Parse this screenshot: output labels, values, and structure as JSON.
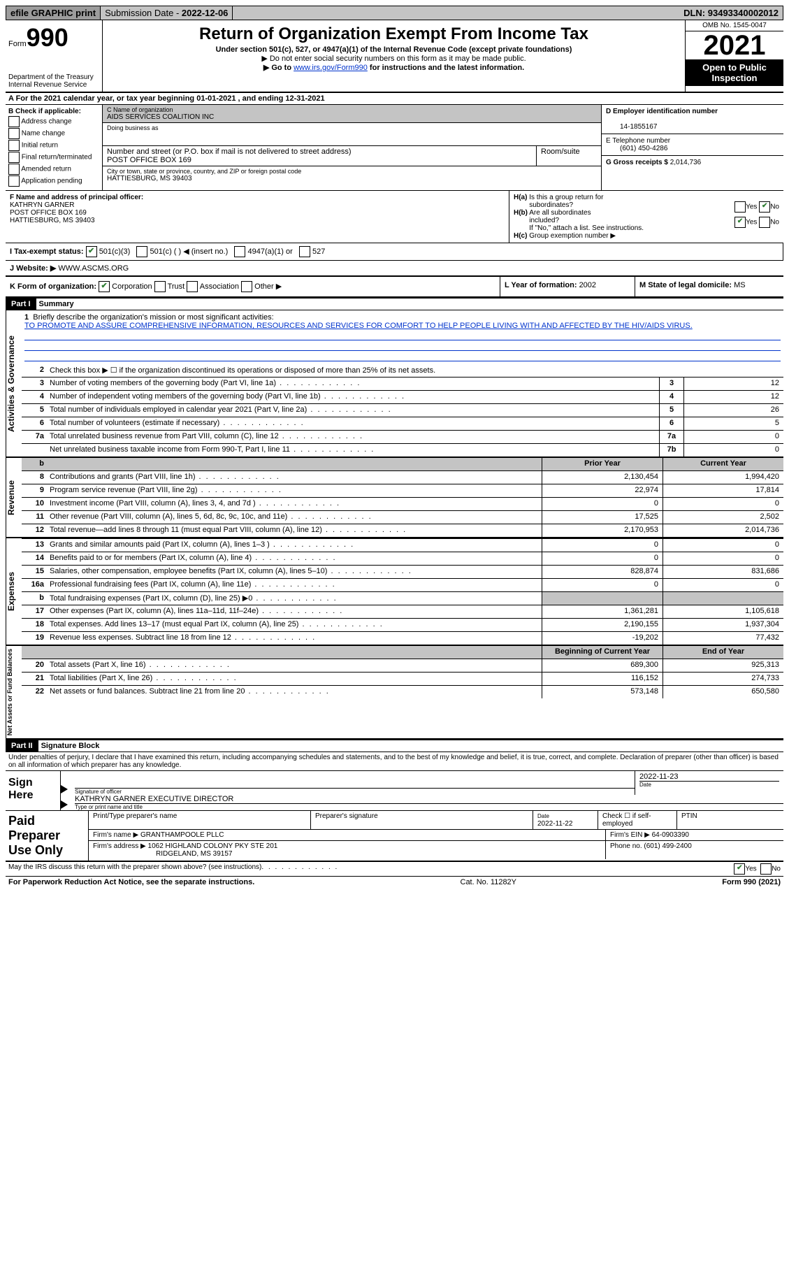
{
  "topbar": {
    "efile": "efile GRAPHIC print",
    "submission_label": "Submission Date - ",
    "submission_date": "2022-12-06",
    "dln_label": "DLN: ",
    "dln": "93493340002012"
  },
  "header": {
    "form_word": "Form",
    "form_number": "990",
    "dept": "Department of the Treasury\nInternal Revenue Service",
    "title": "Return of Organization Exempt From Income Tax",
    "subtitle": "Under section 501(c), 527, or 4947(a)(1) of the Internal Revenue Code (except private foundations)",
    "note1": "▶ Do not enter social security numbers on this form as it may be made public.",
    "note2_pre": "▶ Go to ",
    "note2_link": "www.irs.gov/Form990",
    "note2_post": " for instructions and the latest information.",
    "omb": "OMB No. 1545-0047",
    "year": "2021",
    "open": "Open to Public Inspection"
  },
  "row_a": {
    "text_pre": "A For the 2021 calendar year, or tax year beginning ",
    "begin": "01-01-2021",
    "mid": " , and ending ",
    "end": "12-31-2021"
  },
  "col_b": {
    "label": "B Check if applicable:",
    "opts": [
      "Address change",
      "Name change",
      "Initial return",
      "Final return/terminated",
      "Amended return",
      "Application pending"
    ]
  },
  "col_c": {
    "name_label": "C Name of organization",
    "name": "AIDS SERVICES COALITION INC",
    "dba_label": "Doing business as",
    "dba": "",
    "addr_label": "Number and street (or P.O. box if mail is not delivered to street address)",
    "addr": "POST OFFICE BOX 169",
    "room_label": "Room/suite",
    "room": "",
    "city_label": "City or town, state or province, country, and ZIP or foreign postal code",
    "city": "HATTIESBURG, MS  39403"
  },
  "col_d": {
    "ein_label": "D Employer identification number",
    "ein": "14-1855167",
    "phone_label": "E Telephone number",
    "phone": "(601) 450-4286",
    "gross_label": "G Gross receipts $ ",
    "gross": "2,014,736"
  },
  "officer": {
    "label": "F Name and address of principal officer:",
    "name": "KATHRYN GARNER",
    "addr1": "POST OFFICE BOX 169",
    "addr2": "HATTIESBURG, MS  39403"
  },
  "h": {
    "ha": "H(a)  Is this a group return for subordinates?",
    "hb": "H(b)  Are all subordinates included?",
    "hb_note": "If \"No,\" attach a list. See instructions.",
    "hc": "H(c)  Group exemption number ▶",
    "yes": "Yes",
    "no": "No"
  },
  "row_i": {
    "label": "I  Tax-exempt status:",
    "o1": "501(c)(3)",
    "o2": "501(c) (  ) ◀ (insert no.)",
    "o3": "4947(a)(1) or",
    "o4": "527"
  },
  "row_j": {
    "label": "J  Website: ▶ ",
    "val": "WWW.ASCMS.ORG"
  },
  "row_k": {
    "label": "K Form of organization:",
    "o1": "Corporation",
    "o2": "Trust",
    "o3": "Association",
    "o4": "Other ▶",
    "l_label": "L Year of formation: ",
    "l_val": "2002",
    "m_label": "M State of legal domicile: ",
    "m_val": "MS"
  },
  "part1": {
    "label": "Part I",
    "title": "Summary"
  },
  "summary": {
    "q1": "Briefly describe the organization's mission or most significant activities:",
    "mission": "TO PROMOTE AND ASSURE COMPREHENSIVE INFORMATION, RESOURCES AND SERVICES FOR COMFORT TO HELP PEOPLE LIVING WITH AND AFFECTED BY THE HIV/AIDS VIRUS.",
    "q2": "Check this box ▶ ☐ if the organization discontinued its operations or disposed of more than 25% of its net assets.",
    "rows_ag": [
      {
        "n": "3",
        "d": "Number of voting members of the governing body (Part VI, line 1a)",
        "box": "3",
        "v": "12"
      },
      {
        "n": "4",
        "d": "Number of independent voting members of the governing body (Part VI, line 1b)",
        "box": "4",
        "v": "12"
      },
      {
        "n": "5",
        "d": "Total number of individuals employed in calendar year 2021 (Part V, line 2a)",
        "box": "5",
        "v": "26"
      },
      {
        "n": "6",
        "d": "Total number of volunteers (estimate if necessary)",
        "box": "6",
        "v": "5"
      },
      {
        "n": "7a",
        "d": "Total unrelated business revenue from Part VIII, column (C), line 12",
        "box": "7a",
        "v": "0"
      },
      {
        "n": "",
        "d": "Net unrelated business taxable income from Form 990-T, Part I, line 11",
        "box": "7b",
        "v": "0"
      }
    ],
    "header_prior": "Prior Year",
    "header_current": "Current Year",
    "rows_rev": [
      {
        "n": "8",
        "d": "Contributions and grants (Part VIII, line 1h)",
        "p": "2,130,454",
        "c": "1,994,420"
      },
      {
        "n": "9",
        "d": "Program service revenue (Part VIII, line 2g)",
        "p": "22,974",
        "c": "17,814"
      },
      {
        "n": "10",
        "d": "Investment income (Part VIII, column (A), lines 3, 4, and 7d )",
        "p": "0",
        "c": "0"
      },
      {
        "n": "11",
        "d": "Other revenue (Part VIII, column (A), lines 5, 6d, 8c, 9c, 10c, and 11e)",
        "p": "17,525",
        "c": "2,502"
      },
      {
        "n": "12",
        "d": "Total revenue—add lines 8 through 11 (must equal Part VIII, column (A), line 12)",
        "p": "2,170,953",
        "c": "2,014,736"
      }
    ],
    "rows_exp": [
      {
        "n": "13",
        "d": "Grants and similar amounts paid (Part IX, column (A), lines 1–3 )",
        "p": "0",
        "c": "0"
      },
      {
        "n": "14",
        "d": "Benefits paid to or for members (Part IX, column (A), line 4)",
        "p": "0",
        "c": "0"
      },
      {
        "n": "15",
        "d": "Salaries, other compensation, employee benefits (Part IX, column (A), lines 5–10)",
        "p": "828,874",
        "c": "831,686"
      },
      {
        "n": "16a",
        "d": "Professional fundraising fees (Part IX, column (A), line 11e)",
        "p": "0",
        "c": "0"
      },
      {
        "n": "b",
        "d": "Total fundraising expenses (Part IX, column (D), line 25) ▶0",
        "p": "GREY",
        "c": "GREY"
      },
      {
        "n": "17",
        "d": "Other expenses (Part IX, column (A), lines 11a–11d, 11f–24e)",
        "p": "1,361,281",
        "c": "1,105,618"
      },
      {
        "n": "18",
        "d": "Total expenses. Add lines 13–17 (must equal Part IX, column (A), line 25)",
        "p": "2,190,155",
        "c": "1,937,304"
      },
      {
        "n": "19",
        "d": "Revenue less expenses. Subtract line 18 from line 12",
        "p": "-19,202",
        "c": "77,432"
      }
    ],
    "header_begin": "Beginning of Current Year",
    "header_end": "End of Year",
    "rows_net": [
      {
        "n": "20",
        "d": "Total assets (Part X, line 16)",
        "p": "689,300",
        "c": "925,313"
      },
      {
        "n": "21",
        "d": "Total liabilities (Part X, line 26)",
        "p": "116,152",
        "c": "274,733"
      },
      {
        "n": "22",
        "d": "Net assets or fund balances. Subtract line 21 from line 20",
        "p": "573,148",
        "c": "650,580"
      }
    ],
    "side_ag": "Activities & Governance",
    "side_rev": "Revenue",
    "side_exp": "Expenses",
    "side_net": "Net Assets or Fund Balances"
  },
  "part2": {
    "label": "Part II",
    "title": "Signature Block",
    "penalty": "Under penalties of perjury, I declare that I have examined this return, including accompanying schedules and statements, and to the best of my knowledge and belief, it is true, correct, and complete. Declaration of preparer (other than officer) is based on all information of which preparer has any knowledge."
  },
  "sign": {
    "label": "Sign Here",
    "sig_label": "Signature of officer",
    "date": "2022-11-23",
    "date_label": "Date",
    "name": "KATHRYN GARNER  EXECUTIVE DIRECTOR",
    "name_label": "Type or print name and title"
  },
  "preparer": {
    "label": "Paid Preparer Use Only",
    "h1": "Print/Type preparer's name",
    "h2": "Preparer's signature",
    "h3_label": "Date",
    "h3": "2022-11-22",
    "h4": "Check ☐ if self-employed",
    "h5": "PTIN",
    "firm_label": "Firm's name    ▶ ",
    "firm": "GRANTHAMPOOLE PLLC",
    "ein_label": "Firm's EIN ▶ ",
    "ein": "64-0903390",
    "addr_label": "Firm's address ▶ ",
    "addr1": "1062 HIGHLAND COLONY PKY STE 201",
    "addr2": "RIDGELAND, MS  39157",
    "phone_label": "Phone no. ",
    "phone": "(601) 499-2400"
  },
  "footer": {
    "discuss": "May the IRS discuss this return with the preparer shown above? (see instructions)",
    "yes": "Yes",
    "no": "No",
    "paperwork": "For Paperwork Reduction Act Notice, see the separate instructions.",
    "cat": "Cat. No. 11282Y",
    "formref": "Form 990 (2021)"
  }
}
